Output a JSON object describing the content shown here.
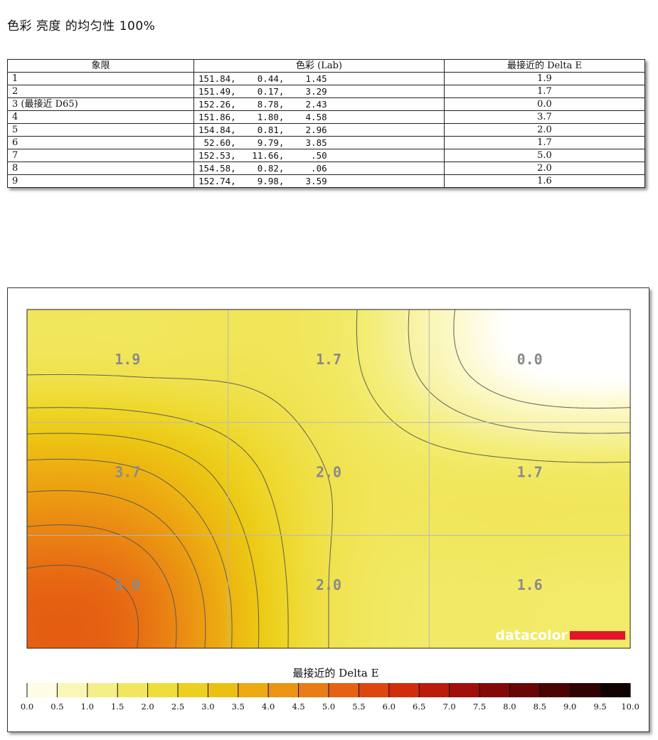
{
  "page": {
    "title": "色彩 亮度 的均匀性 100%"
  },
  "table": {
    "headers": [
      "象限",
      "色彩 (Lab)",
      "最接近的 Delta E"
    ],
    "rows": [
      {
        "quadrant": "1",
        "lab": "151.84,    0.44,    1.45",
        "delta_e": "1.9"
      },
      {
        "quadrant": "2",
        "lab": "151.49,    0.17,    3.29",
        "delta_e": "1.7"
      },
      {
        "quadrant": "3 (最接近 D65)",
        "lab": "152.26,    8.78,    2.43",
        "delta_e": "0.0"
      },
      {
        "quadrant": "4",
        "lab": "151.86,    1.80,    4.58",
        "delta_e": "3.7"
      },
      {
        "quadrant": "5",
        "lab": "154.84,    0.81,    2.96",
        "delta_e": "2.0"
      },
      {
        "quadrant": "6",
        "lab": " 52.60,    9.79,    3.85",
        "delta_e": "1.7"
      },
      {
        "quadrant": "7",
        "lab": "152.53,   11.66,     .50",
        "delta_e": "5.0"
      },
      {
        "quadrant": "8",
        "lab": "154.58,    0.82,     .06",
        "delta_e": "2.0"
      },
      {
        "quadrant": "9",
        "lab": "152.74,    9.98,    3.59",
        "delta_e": "1.6"
      }
    ]
  },
  "chart_data": {
    "type": "heatmap",
    "title": "",
    "grid": {
      "rows": 3,
      "cols": 3
    },
    "values": [
      [
        1.9,
        1.7,
        0.0
      ],
      [
        3.7,
        2.0,
        1.7
      ],
      [
        5.0,
        2.0,
        1.6
      ]
    ],
    "cell_labels": [
      [
        "1.9",
        "1.7",
        "0.0"
      ],
      [
        "3.7",
        "2.0",
        "1.7"
      ],
      [
        "5.0",
        "2.0",
        "1.6"
      ]
    ],
    "contours": true,
    "legend": {
      "title": "最接近的 Delta E",
      "range": [
        0,
        10
      ],
      "step": 0.5,
      "tick_labels": [
        "0.0",
        "0.5",
        "1.0",
        "1.5",
        "2.0",
        "2.5",
        "3.0",
        "3.5",
        "4.0",
        "4.5",
        "5.0",
        "5.5",
        "6.0",
        "6.5",
        "7.0",
        "7.5",
        "8.0",
        "8.5",
        "9.0",
        "9.5",
        "10.0"
      ]
    },
    "colors": [
      "#ffffff",
      "#fcf9c9",
      "#f7f2a0",
      "#f2ec6d",
      "#f0e24e",
      "#eed72a",
      "#ecc813",
      "#edb512",
      "#ec9f11",
      "#ea8913",
      "#e86f13",
      "#e25410",
      "#d9380e",
      "#c8220c",
      "#ae120b",
      "#930a0a",
      "#760606",
      "#590404",
      "#3d0202",
      "#230101",
      "#000000"
    ],
    "watermark": "datacolor",
    "watermark_color": "#e3152b"
  }
}
